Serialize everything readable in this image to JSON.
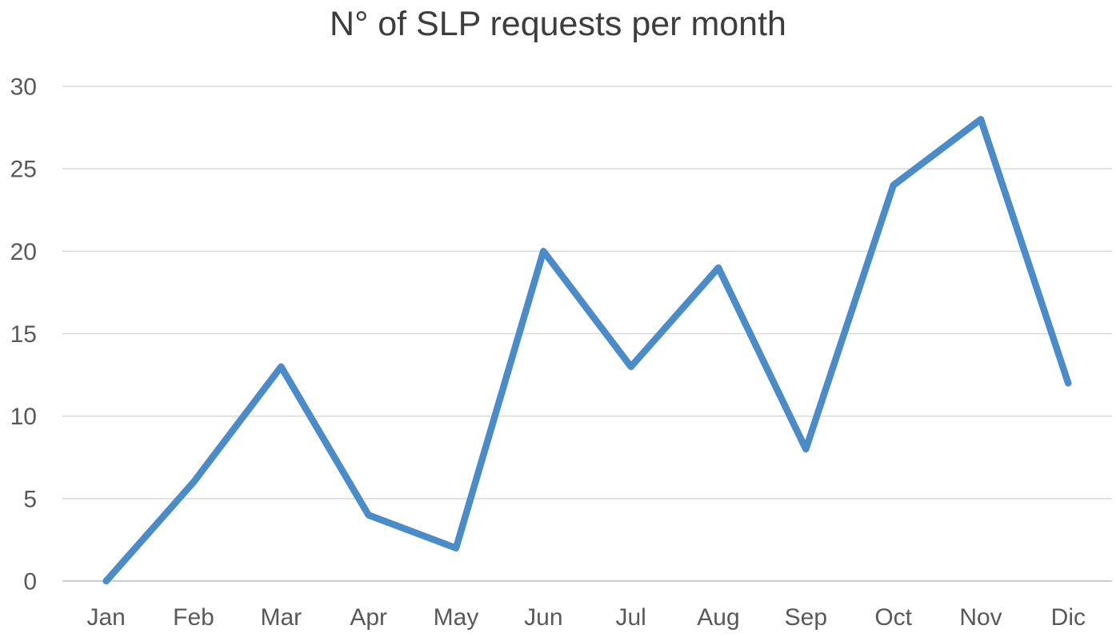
{
  "chart_data": {
    "type": "line",
    "title": "N° of SLP requests per month",
    "categories": [
      "Jan",
      "Feb",
      "Mar",
      "Apr",
      "May",
      "Jun",
      "Jul",
      "Aug",
      "Sep",
      "Oct",
      "Nov",
      "Dic"
    ],
    "values": [
      0,
      6,
      13,
      4,
      2,
      20,
      13,
      19,
      8,
      24,
      28,
      12
    ],
    "xlabel": "",
    "ylabel": "",
    "ylim": [
      0,
      30
    ],
    "yticks": [
      0,
      5,
      10,
      15,
      20,
      25,
      30
    ],
    "grid": "horizontal",
    "legend": "none",
    "colors": {
      "line": "#4a8bca",
      "gridline": "#d9d9d9",
      "axis_line": "#cdcdcd",
      "tick_text": "#595959",
      "title_text": "#3d3d3d"
    }
  }
}
